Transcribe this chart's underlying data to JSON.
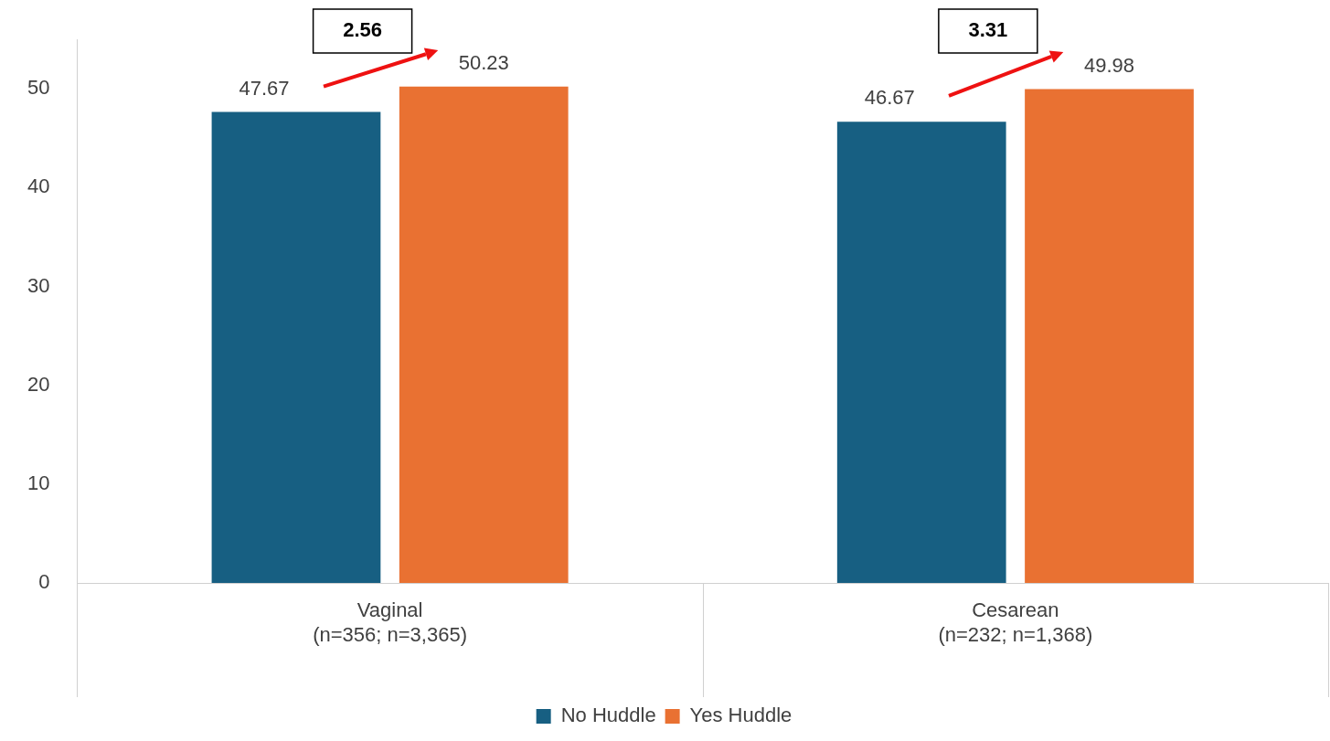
{
  "chart_data": {
    "type": "bar",
    "categories": [
      "Vaginal\n(n=356; n=3,365)",
      "Cesarean\n(n=232; n=1,368)"
    ],
    "series": [
      {
        "name": "No Huddle",
        "color": "#175f82",
        "values": [
          47.67,
          46.67
        ]
      },
      {
        "name": "Yes Huddle",
        "color": "#e97132",
        "values": [
          50.23,
          49.98
        ]
      }
    ],
    "ylim": [
      0,
      55
    ],
    "yticks": [
      0,
      10,
      20,
      30,
      40,
      50
    ],
    "grid": false,
    "legend": "bottom",
    "data_labels": true,
    "annotations": [
      "2.56",
      "3.31"
    ]
  }
}
